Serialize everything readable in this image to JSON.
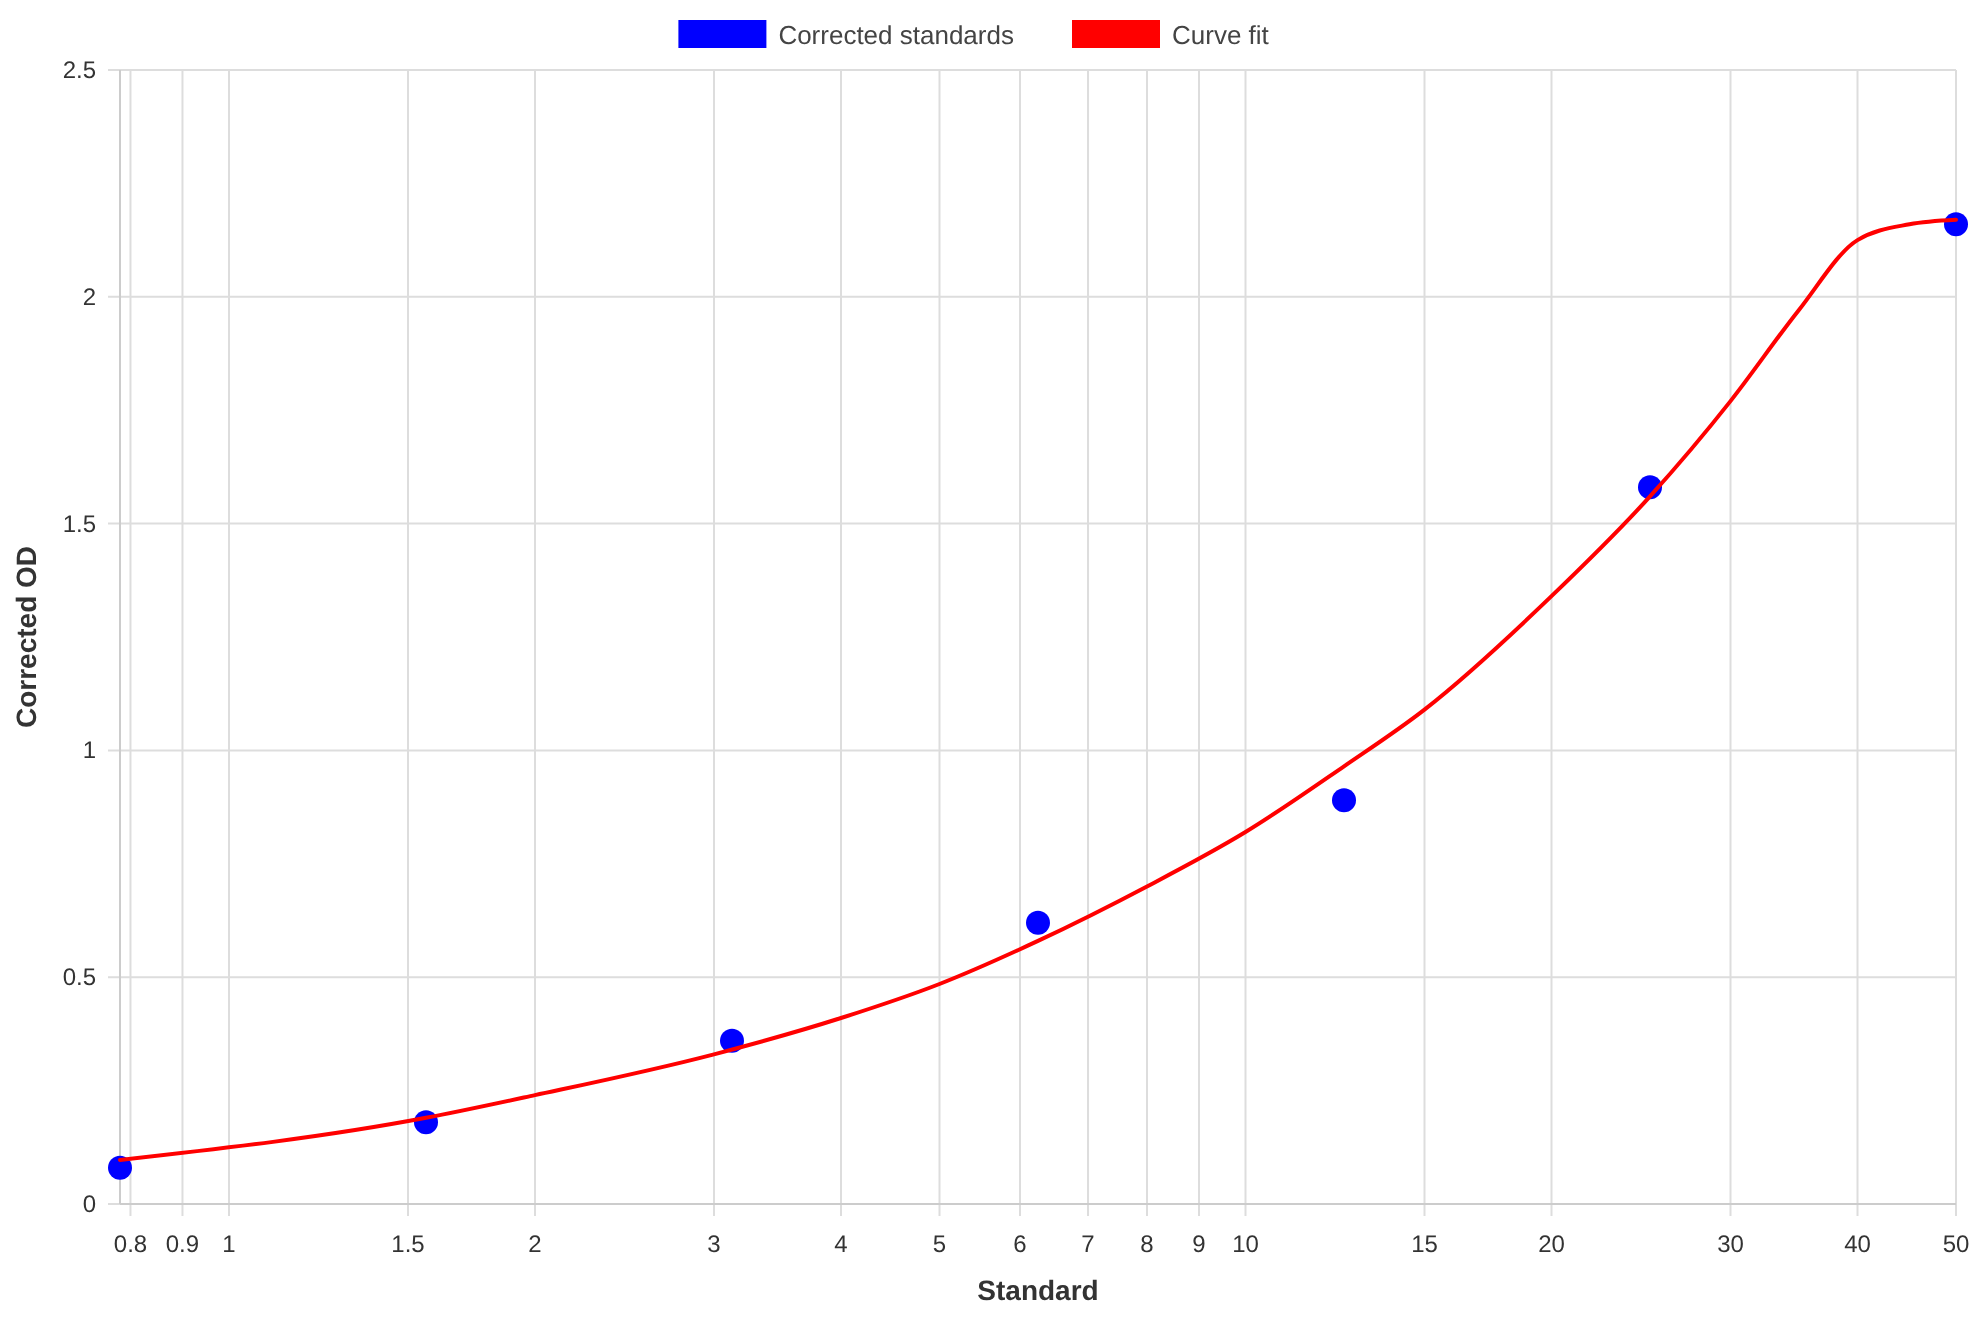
{
  "chart_data": {
    "type": "scatter",
    "xlabel": "Standard",
    "ylabel": "Corrected OD",
    "log": "x",
    "xlim": [
      0.78125,
      50
    ],
    "xticks": [
      0.8,
      0.9,
      1,
      1.5,
      2,
      3,
      4,
      5,
      6,
      7,
      8,
      9,
      10,
      15,
      20,
      30,
      40,
      50
    ],
    "ylim": [
      0,
      2.5
    ],
    "yticks": [
      0,
      0.5,
      1,
      1.5,
      2,
      2.5
    ],
    "grid": true,
    "legend": "top",
    "series": [
      {
        "name": "Corrected standards",
        "color": "#0000ff",
        "marker": "circle",
        "x": [
          0.78125,
          1.5625,
          3.125,
          6.25,
          12.5,
          25,
          50
        ],
        "values": [
          0.08,
          0.18,
          0.36,
          0.62,
          0.89,
          1.58,
          2.16
        ]
      },
      {
        "name": "Curve fit",
        "type": "line",
        "color": "#ff0000",
        "marker": "none",
        "line_style": "solid",
        "x": [
          0.78125,
          1.5625,
          2,
          3,
          4,
          5,
          6.25,
          8,
          10,
          12.5,
          15,
          20,
          25,
          30,
          35,
          40,
          45,
          50
        ],
        "values": [
          0.097,
          0.19,
          0.24,
          0.33,
          0.41,
          0.485,
          0.58,
          0.7,
          0.82,
          0.965,
          1.09,
          1.34,
          1.56,
          1.77,
          1.97,
          2.125,
          2.16,
          2.17
        ]
      }
    ]
  }
}
